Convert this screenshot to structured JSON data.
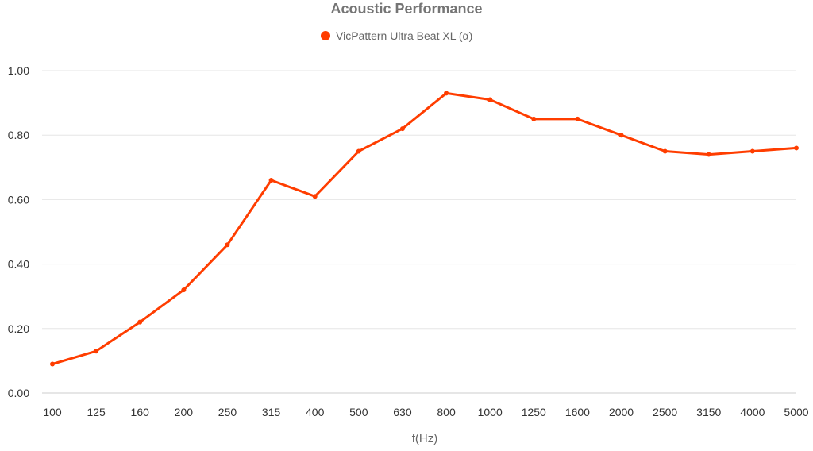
{
  "chart_data": {
    "type": "line",
    "title": "Acoustic Performance",
    "xlabel": "f(Hz)",
    "ylabel": "",
    "categories": [
      "100",
      "125",
      "160",
      "200",
      "250",
      "315",
      "400",
      "500",
      "630",
      "800",
      "1000",
      "1250",
      "1600",
      "2000",
      "2500",
      "3150",
      "4000",
      "5000"
    ],
    "series": [
      {
        "name": "VicPattern Ultra Beat XL (α)",
        "color": "#ff3d00",
        "values": [
          0.09,
          0.13,
          0.22,
          0.32,
          0.46,
          0.66,
          0.61,
          0.75,
          0.82,
          0.93,
          0.91,
          0.85,
          0.85,
          0.8,
          0.75,
          0.74,
          0.75,
          0.76
        ]
      }
    ],
    "ylim": [
      0,
      1
    ],
    "yticks": [
      "0.00",
      "0.20",
      "0.40",
      "0.60",
      "0.80",
      "1.00"
    ],
    "grid": true,
    "legend_position": "top-center"
  }
}
